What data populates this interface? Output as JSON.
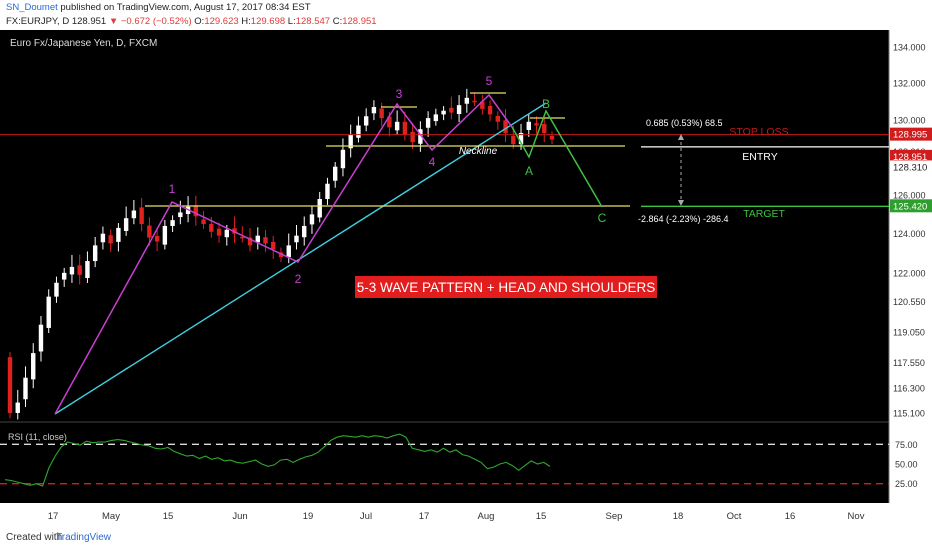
{
  "header": {
    "author": "SN_Doumet",
    "published": "published on TradingView.com, August 17, 2017 08:34 EST",
    "symbol": "FX:EURJPY, D",
    "last": "128.951",
    "change": "▼ −0.672 (−0.52%)",
    "o_label": "O:",
    "o_value": "129.623",
    "h_label": "H:",
    "h_value": "129.698",
    "l_label": "L:",
    "l_value": "128.547",
    "c_label": "C:",
    "c_value": "128.951"
  },
  "footer": {
    "created": "Created with",
    "brand": "TradingView"
  },
  "colors": {
    "background": "#000000",
    "up_candle": "#ffffff",
    "down_candle": "#e0221e",
    "wave_line": "#c83fd2",
    "trend_line": "#3fd0e0",
    "neckline": "#e8e066",
    "corrective": "#40c040",
    "stop_loss": "#c01a1a",
    "rsi_line": "#2ea82e"
  },
  "chart_data": [
    {
      "type": "candlestick",
      "title": "Euro Fx/Japanese Yen, D, FXCM",
      "x_ticks": [
        "17",
        "May",
        "15",
        "Jun",
        "19",
        "Jul",
        "17",
        "Aug",
        "15",
        "Sep",
        "18",
        "Oct",
        "16",
        "Nov"
      ],
      "y_ticks": [
        134.0,
        132.0,
        130.0,
        128.31,
        126.0,
        124.0,
        122.0,
        120.55,
        119.05,
        117.55,
        116.3,
        115.1
      ],
      "y_scale": "log",
      "ylim": [
        114.4,
        135.4
      ],
      "price_tags": [
        {
          "value": "128.995",
          "kind": "stop"
        },
        {
          "value": "128.951",
          "kind": "last"
        },
        {
          "value": "128.310",
          "kind": "plain"
        },
        {
          "value": "125.420",
          "kind": "target"
        }
      ],
      "close_series": [
        115.1,
        115.6,
        116.8,
        118.0,
        119.4,
        120.8,
        121.5,
        122.0,
        122.3,
        121.9,
        122.6,
        123.4,
        124.0,
        123.5,
        124.3,
        124.8,
        125.2,
        124.5,
        123.8,
        123.6,
        124.4,
        124.7,
        125.1,
        125.4,
        124.9,
        124.5,
        124.1,
        123.9,
        124.2,
        124.0,
        123.8,
        123.4,
        123.9,
        123.5,
        123.2,
        122.8,
        123.4,
        123.9,
        124.4,
        125.0,
        125.8,
        126.6,
        127.5,
        128.4,
        129.2,
        129.7,
        130.2,
        130.7,
        130.1,
        129.6,
        129.9,
        129.2,
        128.8,
        129.5,
        130.1,
        130.3,
        130.5,
        130.4,
        130.8,
        131.2,
        131.0,
        130.6,
        130.3,
        129.9,
        129.3,
        128.7,
        129.3,
        129.9,
        129.7,
        129.3,
        128.95
      ],
      "series": [
        {
          "name": "EURJPY",
          "kind": "candles"
        }
      ],
      "annotations": {
        "wave_labels": [
          "1",
          "2",
          "3",
          "4",
          "5"
        ],
        "corrective_labels": [
          "A",
          "B",
          "C"
        ],
        "neckline_label": "Neckline",
        "title_box": "5-3 WAVE PATTERN + HEAD AND SHOULDERS",
        "stop_label": "STOP LOSS",
        "entry_label": "ENTRY",
        "target_label": "TARGET",
        "upper_measure": "0.685 (0.53%) 68.5",
        "lower_measure": "-2.864 (-2.23%) -286.4"
      }
    },
    {
      "type": "line",
      "title": "RSI (11, close)",
      "y_ticks": [
        75.0,
        50.0,
        25.0
      ],
      "ylim": [
        3,
        97
      ],
      "levels": [
        75,
        25
      ],
      "values": [
        30,
        29,
        27,
        25,
        23,
        25,
        22,
        45,
        60,
        72,
        78,
        76,
        74,
        79,
        77,
        78,
        78,
        80,
        81,
        80,
        78,
        76,
        74,
        73,
        70,
        69,
        71,
        66,
        63,
        60,
        61,
        57,
        60,
        56,
        58,
        54,
        55,
        52,
        51,
        53,
        55,
        50,
        47,
        49,
        55,
        56,
        52,
        56,
        59,
        61,
        65,
        72,
        80,
        84,
        86,
        85,
        84,
        86,
        84,
        86,
        85,
        83,
        86,
        88,
        84,
        70,
        68,
        66,
        68,
        65,
        70,
        65,
        68,
        62,
        60,
        56,
        52,
        44,
        46,
        50,
        52,
        48,
        42,
        48,
        54,
        50,
        52,
        47
      ]
    }
  ]
}
